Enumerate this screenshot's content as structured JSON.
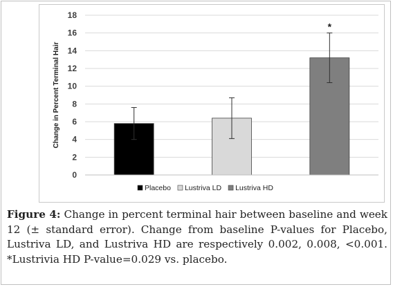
{
  "figure": {
    "caption_label": "Figure 4:",
    "caption_text": " Change in percent terminal hair between baseline and week 12 (± standard error). Change from baseline P-values for Placebo, Lustriva LD, and Lustriva HD are respectively 0.002, 0.008, <0.001. *Lustrivia HD P-value=0.029 vs. placebo."
  },
  "chart_data": {
    "type": "bar",
    "title": "",
    "xlabel": "",
    "ylabel": "Change in Percent Terminal Hair",
    "ylim": [
      0,
      18
    ],
    "yticks": [
      0,
      2,
      4,
      6,
      8,
      10,
      12,
      14,
      16,
      18
    ],
    "grid": true,
    "legend_position": "bottom",
    "categories": [
      "Placebo",
      "Lustriva LD",
      "Lustriva HD"
    ],
    "values": [
      5.8,
      6.4,
      13.2
    ],
    "error": [
      1.8,
      2.3,
      2.8
    ],
    "colors": [
      "#000000",
      "#d9d9d9",
      "#7f7f7f"
    ],
    "annotations": [
      {
        "category": "Lustriva HD",
        "text": "*"
      }
    ]
  }
}
